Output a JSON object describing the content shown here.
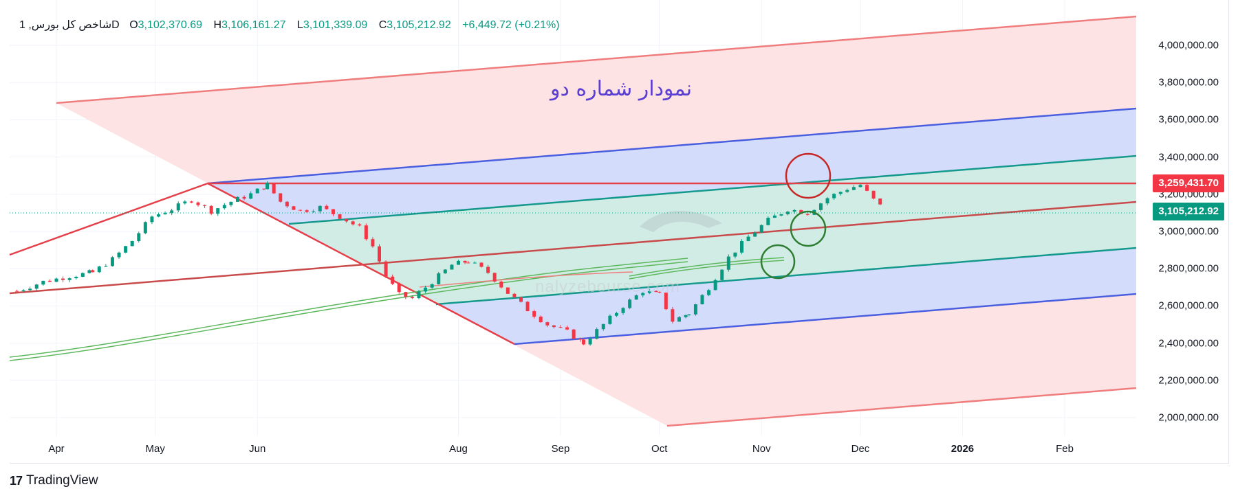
{
  "legend": {
    "symbol": "شاخص کل بورس, 1D",
    "open_label": "O",
    "open": "3,102,370.69",
    "high_label": "H",
    "high": "3,106,161.27",
    "low_label": "L",
    "low": "3,101,339.09",
    "close_label": "C",
    "close": "3,105,212.92",
    "change": "+6,449.72 (+0.21%)"
  },
  "annotation": "نمودار شماره دو",
  "watermark": "nalyzebourse.com",
  "brand": {
    "logo": "17",
    "name": "TradingView"
  },
  "price_tags": [
    {
      "label": "3,259,431.70",
      "value": 3259431.7,
      "color": "#f23645"
    },
    {
      "label": "3,105,212.92",
      "value": 3105212.92,
      "color": "#089981"
    }
  ],
  "chart_data": {
    "type": "candlestick",
    "symbol": "شاخص کل بورس",
    "interval": "1D",
    "ylim": [
      1900000,
      4200000
    ],
    "y_ticks": [
      "4,000,000.00",
      "3,800,000.00",
      "3,600,000.00",
      "3,400,000.00",
      "3,200,000.00",
      "3,000,000.00",
      "2,800,000.00",
      "2,600,000.00",
      "2,400,000.00",
      "2,200,000.00",
      "2,000,000.00"
    ],
    "y_tick_values": [
      4000000,
      3800000,
      3600000,
      3400000,
      3200000,
      3000000,
      2800000,
      2600000,
      2400000,
      2200000,
      2000000
    ],
    "x_ticks": [
      {
        "label": "Apr",
        "date": "2025-04-01"
      },
      {
        "label": "May",
        "date": "2025-05-01"
      },
      {
        "label": "Jun",
        "date": "2025-06-01"
      },
      {
        "label": "Aug",
        "date": "2025-08-01"
      },
      {
        "label": "Sep",
        "date": "2025-09-01"
      },
      {
        "label": "Oct",
        "date": "2025-10-01"
      },
      {
        "label": "Nov",
        "date": "2025-11-01"
      },
      {
        "label": "Dec",
        "date": "2025-12-01"
      },
      {
        "label": "2026",
        "date": "2026-01-01",
        "bold": true
      },
      {
        "label": "Feb",
        "date": "2026-02-01"
      }
    ],
    "close_path": [
      [
        "2025-03-20",
        2680000
      ],
      [
        "2025-03-28",
        2730000
      ],
      [
        "2025-04-05",
        2760000
      ],
      [
        "2025-04-12",
        2780000
      ],
      [
        "2025-04-18",
        2850000
      ],
      [
        "2025-04-24",
        2950000
      ],
      [
        "2025-04-30",
        3080000
      ],
      [
        "2025-05-06",
        3120000
      ],
      [
        "2025-05-12",
        3170000
      ],
      [
        "2025-05-18",
        3110000
      ],
      [
        "2025-05-24",
        3160000
      ],
      [
        "2025-05-30",
        3200000
      ],
      [
        "2025-06-04",
        3250000
      ],
      [
        "2025-06-08",
        3160000
      ],
      [
        "2025-06-14",
        3110000
      ],
      [
        "2025-06-20",
        3130000
      ],
      [
        "2025-06-26",
        3080000
      ],
      [
        "2025-07-02",
        3020000
      ],
      [
        "2025-07-06",
        2920000
      ],
      [
        "2025-07-10",
        2760000
      ],
      [
        "2025-07-14",
        2660000
      ],
      [
        "2025-07-18",
        2640000
      ],
      [
        "2025-07-24",
        2730000
      ],
      [
        "2025-07-30",
        2820000
      ],
      [
        "2025-08-04",
        2840000
      ],
      [
        "2025-08-10",
        2780000
      ],
      [
        "2025-08-16",
        2670000
      ],
      [
        "2025-08-22",
        2580000
      ],
      [
        "2025-08-28",
        2500000
      ],
      [
        "2025-09-03",
        2460000
      ],
      [
        "2025-09-08",
        2400000
      ],
      [
        "2025-09-14",
        2500000
      ],
      [
        "2025-09-20",
        2600000
      ],
      [
        "2025-09-26",
        2680000
      ],
      [
        "2025-10-01",
        2660000
      ],
      [
        "2025-10-05",
        2520000
      ],
      [
        "2025-10-10",
        2560000
      ],
      [
        "2025-10-16",
        2700000
      ],
      [
        "2025-10-22",
        2860000
      ],
      [
        "2025-10-28",
        2970000
      ],
      [
        "2025-11-03",
        3060000
      ],
      [
        "2025-11-09",
        3120000
      ],
      [
        "2025-11-15",
        3100000
      ],
      [
        "2025-11-21",
        3180000
      ],
      [
        "2025-11-27",
        3230000
      ],
      [
        "2025-12-01",
        3250000
      ],
      [
        "2025-12-05",
        3170000
      ],
      [
        "2025-12-09",
        3105212.92
      ]
    ],
    "pitchfork": {
      "color_outer": "#f07d7d",
      "color_mid": "#4a5ee0",
      "color_inner": "#14998c",
      "color_median": "#c94a4a",
      "fill_outer": "#fde3e4",
      "fill_mid": "#d3ddfb",
      "fill_inner": "#d1ece4"
    },
    "annotations": [
      {
        "type": "circle",
        "color": "#c62828"
      },
      {
        "type": "circle",
        "color": "#2e7d32"
      },
      {
        "type": "circle",
        "color": "#2e7d32"
      }
    ]
  }
}
